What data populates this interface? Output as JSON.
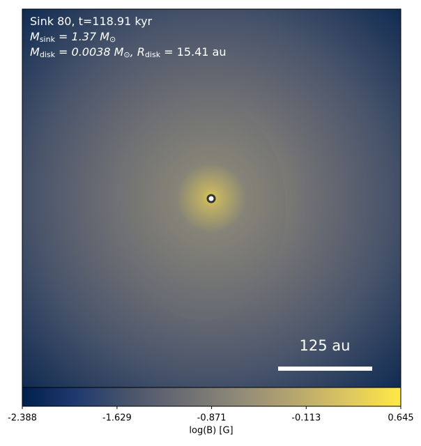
{
  "chart_data": {
    "type": "image",
    "annotations": [
      [
        {
          "text": "Sink 80, t=118.91 kyr"
        }
      ],
      [
        {
          "text": "M",
          "sub": "sink"
        },
        {
          "text": " = 1.37 M",
          "sub": "⊙"
        }
      ],
      [
        {
          "text": "M",
          "sub": "disk"
        },
        {
          "text": " = 0.0038 M",
          "sub": "⊙"
        },
        {
          "text": ", R",
          "sub": "disk"
        },
        {
          "text": " = 15.41 au"
        }
      ]
    ],
    "scale_bar": {
      "label": "125 au"
    },
    "colorbar": {
      "label": "log(B) [G]",
      "colormap": "cividis",
      "colors": [
        "#00204c",
        "#1f3a6e",
        "#4a556b",
        "#6d6e73",
        "#8f8a78",
        "#b5a570",
        "#dcc660",
        "#ffe945"
      ],
      "xlim": [
        -2.388,
        0.645
      ],
      "xticks": [
        -2.388,
        -1.629,
        -0.871,
        -0.113,
        0.645
      ]
    }
  }
}
